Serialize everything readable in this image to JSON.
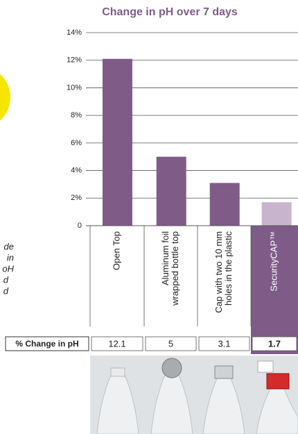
{
  "chart_data": {
    "type": "bar",
    "title": "Change in pH over 7 days",
    "categories": [
      [
        "Open Top"
      ],
      [
        "Aluminum foil",
        "wrapped bottle top"
      ],
      [
        "Cap with two 10 mm",
        "holes in the plastic"
      ],
      [
        "SecurityCAP™"
      ]
    ],
    "values": [
      12.1,
      5,
      3.1,
      1.7
    ],
    "color": "#7f5c88",
    "highlight_color": "#c8b4cc",
    "ylim": [
      0,
      14
    ],
    "yticks": [
      0,
      {
        "value": 2,
        "label": "2%"
      },
      {
        "value": 4,
        "label": "4%"
      },
      {
        "value": 6,
        "label": "6%"
      },
      {
        "value": 8,
        "label": "8%"
      },
      {
        "value": 10,
        "label": "10%"
      },
      {
        "value": 12,
        "label": "12%"
      },
      {
        "value": 14,
        "label": "14%"
      }
    ],
    "grid": true,
    "table_label": "% Change in pH",
    "side_note": [
      "de",
      "in",
      "oH",
      "d",
      "d"
    ]
  }
}
